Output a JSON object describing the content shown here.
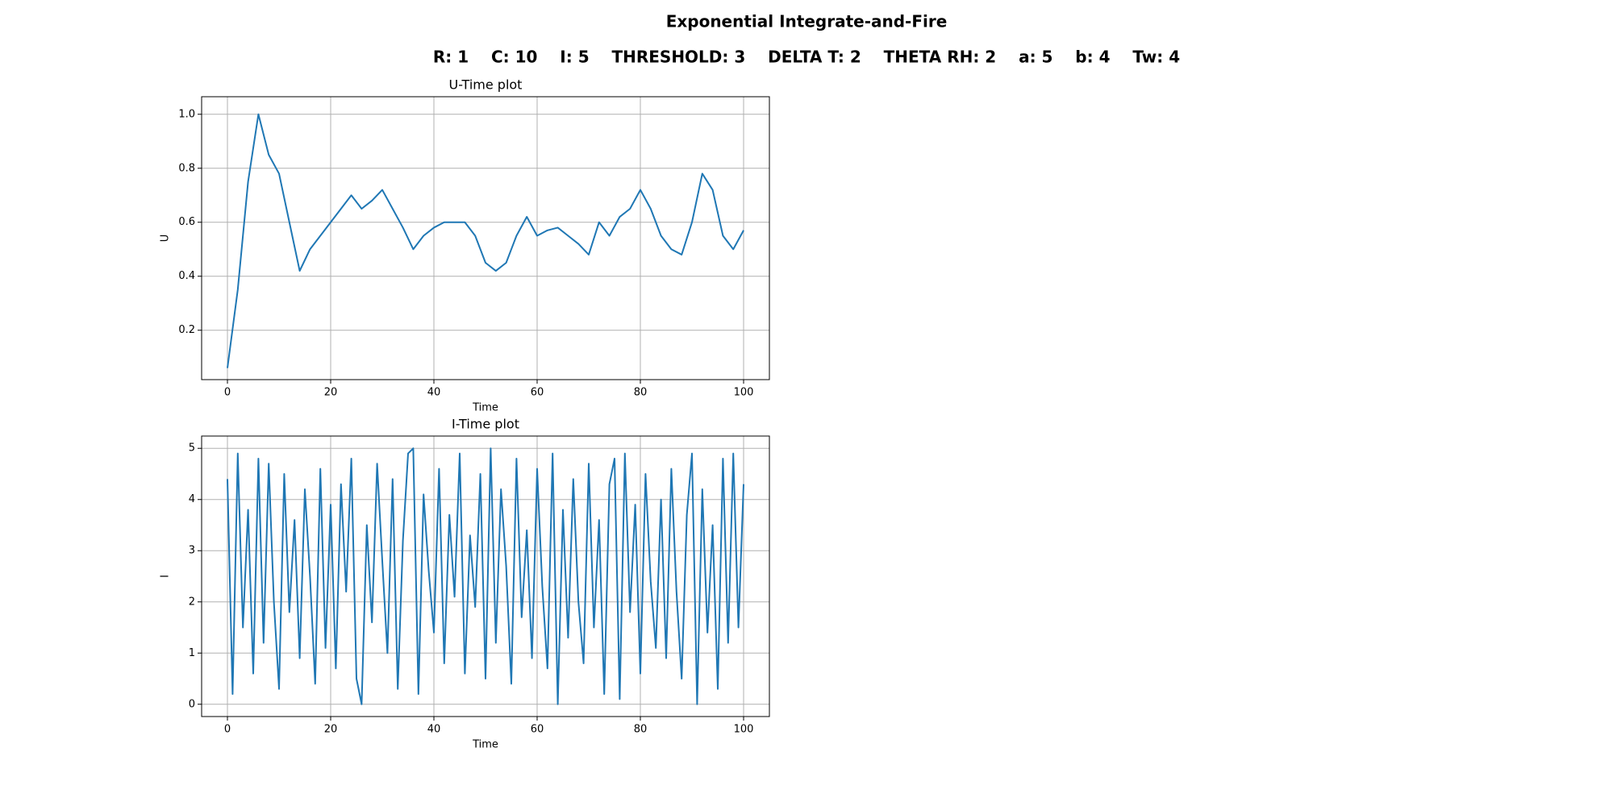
{
  "title": "Exponential Integrate-and-Fire",
  "subtitle": "R: 1    C: 10    I: 5    THRESHOLD: 3    DELTA T: 2    THETA RH: 2    a: 5    b: 4    Tw: 4",
  "chart_data": [
    {
      "type": "line",
      "title": "U-Time plot",
      "xlabel": "Time",
      "ylabel": "U",
      "color": "#1f77b4",
      "grid": true,
      "xlim": [
        -5,
        105
      ],
      "ylim": [
        0.017,
        1.065
      ],
      "xticks": [
        0,
        20,
        40,
        60,
        80,
        100
      ],
      "yticks": [
        0.2,
        0.4,
        0.6,
        0.8,
        {
          "value": 1,
          "label": "1.0"
        }
      ],
      "x": [
        0,
        2,
        4,
        6,
        8,
        10,
        12,
        14,
        16,
        18,
        20,
        22,
        24,
        26,
        28,
        30,
        32,
        34,
        36,
        38,
        40,
        42,
        44,
        46,
        48,
        50,
        52,
        54,
        56,
        58,
        60,
        62,
        64,
        66,
        68,
        70,
        72,
        74,
        76,
        78,
        80,
        82,
        84,
        86,
        88,
        90,
        92,
        94,
        96,
        98,
        100
      ],
      "values": [
        0.06,
        0.35,
        0.75,
        1.0,
        0.85,
        0.78,
        0.6,
        0.42,
        0.5,
        0.55,
        0.6,
        0.65,
        0.7,
        0.65,
        0.68,
        0.72,
        0.65,
        0.58,
        0.5,
        0.55,
        0.58,
        0.6,
        0.6,
        0.6,
        0.55,
        0.45,
        0.42,
        0.45,
        0.55,
        0.62,
        0.55,
        0.57,
        0.58,
        0.55,
        0.52,
        0.48,
        0.6,
        0.55,
        0.62,
        0.65,
        0.72,
        0.65,
        0.55,
        0.5,
        0.48,
        0.6,
        0.78,
        0.72,
        0.55,
        0.5,
        0.57
      ]
    },
    {
      "type": "line",
      "title": "I-Time plot",
      "xlabel": "Time",
      "ylabel": "I",
      "color": "#1f77b4",
      "grid": true,
      "xlim": [
        -5,
        105
      ],
      "ylim": [
        -0.24,
        5.24
      ],
      "xticks": [
        0,
        20,
        40,
        60,
        80,
        100
      ],
      "yticks": [
        0,
        1,
        2,
        3,
        4,
        5
      ],
      "x": [
        0,
        1,
        2,
        3,
        4,
        5,
        6,
        7,
        8,
        9,
        10,
        11,
        12,
        13,
        14,
        15,
        16,
        17,
        18,
        19,
        20,
        21,
        22,
        23,
        24,
        25,
        26,
        27,
        28,
        29,
        30,
        31,
        32,
        33,
        34,
        35,
        36,
        37,
        38,
        39,
        40,
        41,
        42,
        43,
        44,
        45,
        46,
        47,
        48,
        49,
        50,
        51,
        52,
        53,
        54,
        55,
        56,
        57,
        58,
        59,
        60,
        61,
        62,
        63,
        64,
        65,
        66,
        67,
        68,
        69,
        70,
        71,
        72,
        73,
        74,
        75,
        76,
        77,
        78,
        79,
        80,
        81,
        82,
        83,
        84,
        85,
        86,
        87,
        88,
        89,
        90,
        91,
        92,
        93,
        94,
        95,
        96,
        97,
        98,
        99,
        100
      ],
      "values": [
        4.4,
        0.2,
        4.9,
        1.5,
        3.8,
        0.6,
        4.8,
        1.2,
        4.7,
        2.0,
        0.3,
        4.5,
        1.8,
        3.6,
        0.9,
        4.2,
        2.5,
        0.4,
        4.6,
        1.1,
        3.9,
        0.7,
        4.3,
        2.2,
        4.8,
        0.5,
        0.0,
        3.5,
        1.6,
        4.7,
        2.8,
        1.0,
        4.4,
        0.3,
        3.2,
        4.9,
        5.0,
        0.2,
        4.1,
        2.6,
        1.4,
        4.6,
        0.8,
        3.7,
        2.1,
        4.9,
        0.6,
        3.3,
        1.9,
        4.5,
        0.5,
        5.0,
        1.2,
        4.2,
        2.7,
        0.4,
        4.8,
        1.7,
        3.4,
        0.9,
        4.6,
        2.3,
        0.7,
        4.9,
        0.0,
        3.8,
        1.3,
        4.4,
        2.0,
        0.8,
        4.7,
        1.5,
        3.6,
        0.2,
        4.3,
        4.8,
        0.1,
        4.9,
        1.8,
        3.9,
        0.6,
        4.5,
        2.4,
        1.1,
        4.0,
        0.9,
        4.6,
        2.2,
        0.5,
        3.7,
        4.9,
        0.0,
        4.2,
        1.4,
        3.5,
        0.3,
        4.8,
        1.2,
        4.9,
        1.5,
        4.3
      ]
    }
  ]
}
